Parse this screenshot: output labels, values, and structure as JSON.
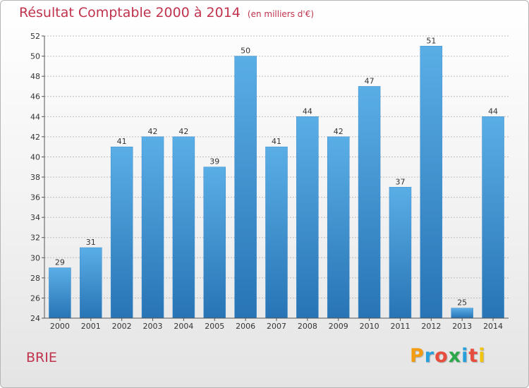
{
  "header": {
    "title": "Résultat Comptable 2000 à 2014",
    "unit": "(en milliers d'€)"
  },
  "footer": {
    "place": "BRIE",
    "logo_letters": [
      "P",
      "r",
      "o",
      "x",
      "i",
      "t",
      "i"
    ]
  },
  "colors": {
    "title": "#c0334d",
    "bar_top": "#5aaee6",
    "bar_bottom": "#2874b5",
    "grid": "#bdbdbd",
    "logo": [
      "#f39c12",
      "#27a0dd",
      "#e74c3c",
      "#2aa84a",
      "#27a0dd",
      "#e74c3c",
      "#f1c40f"
    ]
  },
  "chart_data": {
    "type": "bar",
    "title": "Résultat Comptable 2000 à 2014",
    "ylabel": "en milliers d'€",
    "xlabel": "",
    "categories": [
      "2000",
      "2001",
      "2002",
      "2003",
      "2004",
      "2005",
      "2006",
      "2007",
      "2008",
      "2009",
      "2010",
      "2011",
      "2012",
      "2013",
      "2014"
    ],
    "values": [
      29,
      31,
      41,
      42,
      42,
      39,
      50,
      41,
      44,
      42,
      47,
      37,
      51,
      25,
      44
    ],
    "ylim": [
      24,
      52
    ],
    "yticks": [
      24,
      26,
      28,
      30,
      32,
      34,
      36,
      38,
      40,
      42,
      44,
      46,
      48,
      50,
      52
    ],
    "grid": true
  }
}
